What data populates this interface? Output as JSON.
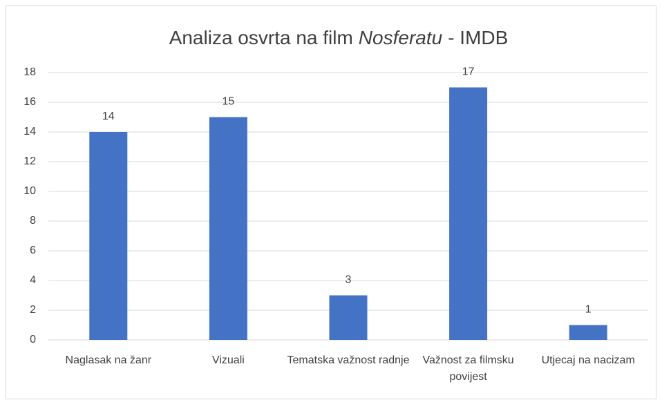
{
  "chart_data": {
    "type": "bar",
    "title": [
      "Analiza osvrta na film",
      "Nosferatu",
      "- IMDB"
    ],
    "categories": [
      "Naglasak na žanr",
      "Vizuali",
      "Tematska važnost radnje",
      "Važnost za filmsku povijest",
      "Utjecaj na nacizam"
    ],
    "values": [
      14,
      15,
      3,
      17,
      1
    ],
    "color": "#4472c4",
    "ylim": [
      0,
      18
    ],
    "yticks": [
      0,
      2,
      4,
      6,
      8,
      10,
      12,
      14,
      16,
      18
    ],
    "grid": true,
    "data_labels": true
  }
}
